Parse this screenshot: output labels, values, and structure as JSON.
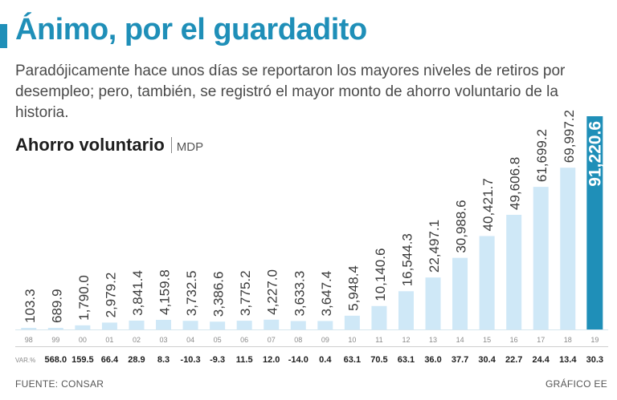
{
  "title": "Ánimo, por el guardadito",
  "subtitle": "Paradójicamente hace unos días se reportaron los mayores niveles de retiros por desempleo; pero, también, se registró el mayor monto de ahorro voluntario de la historia.",
  "source": "FUENTE: CONSAR",
  "credit": "GRÁFICO EE",
  "colors": {
    "accent": "#1f8fb8",
    "bar": "#cfe8f7",
    "highlight": "#1f8fb8"
  },
  "chart_data": {
    "type": "bar",
    "title": "Ahorro voluntario",
    "unit": "MDP",
    "categories": [
      "98",
      "99",
      "00",
      "01",
      "02",
      "03",
      "04",
      "05",
      "06",
      "07",
      "08",
      "09",
      "10",
      "11",
      "12",
      "13",
      "14",
      "15",
      "16",
      "17",
      "18",
      "19"
    ],
    "values": [
      103.3,
      689.9,
      1790.0,
      2979.2,
      3841.4,
      4159.8,
      3732.5,
      3386.6,
      3775.2,
      4227.0,
      3633.3,
      3647.4,
      5948.4,
      10140.6,
      16544.3,
      22497.1,
      30988.6,
      40421.7,
      49606.8,
      61699.2,
      69997.2,
      91220.6
    ],
    "value_labels": [
      "103.3",
      "689.9",
      "1,790.0",
      "2,979.2",
      "3,841.4",
      "4,159.8",
      "3,732.5",
      "3,386.6",
      "3,775.2",
      "4,227.0",
      "3,633.3",
      "3,647.4",
      "5,948.4",
      "10,140.6",
      "16,544.3",
      "22,497.1",
      "30,988.6",
      "40,421.7",
      "49,606.8",
      "61,699.2",
      "69,997.2",
      "91,220.6"
    ],
    "highlight_index": 21,
    "var_label": "VAR.%",
    "var_pct": [
      "",
      "568.0",
      "159.5",
      "66.4",
      "28.9",
      "8.3",
      "-10.3",
      "-9.3",
      "11.5",
      "12.0",
      "-14.0",
      "0.4",
      "63.1",
      "70.5",
      "63.1",
      "36.0",
      "37.7",
      "30.4",
      "22.7",
      "24.4",
      "13.4",
      "30.3"
    ],
    "ylim": [
      0,
      91220.6
    ]
  }
}
